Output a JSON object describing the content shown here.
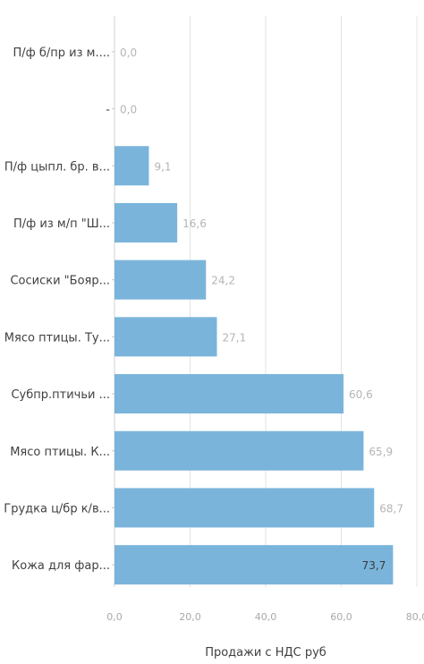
{
  "chart_data": {
    "type": "bar",
    "orientation": "horizontal",
    "xlabel": "Продажи с НДС руб",
    "xlim": [
      0,
      80
    ],
    "xticks": [
      "0,0",
      "20,0",
      "40,0",
      "60,0",
      "80,0"
    ],
    "grid": true,
    "categories": [
      "П/ф б/пр из м....",
      "-",
      "П/ф цыпл. бр. в...",
      "П/ф из м/п \"Ш...",
      "Сосиски \"Бояр...",
      "Мясо птицы. Ту...",
      "Субпр.птичьи ...",
      "Мясо птицы. К...",
      "Грудка ц/бр к/в...",
      "Кожа для фар..."
    ],
    "values": [
      0,
      0,
      9.1,
      16.6,
      24.2,
      27.1,
      60.6,
      65.9,
      68.7,
      73.7
    ],
    "value_labels": [
      "0,0",
      "0,0",
      "9,1",
      "16,6",
      "24,2",
      "27,1",
      "60,6",
      "65,9",
      "68,7",
      "73,7"
    ],
    "bar_color": "#7ab4db"
  }
}
